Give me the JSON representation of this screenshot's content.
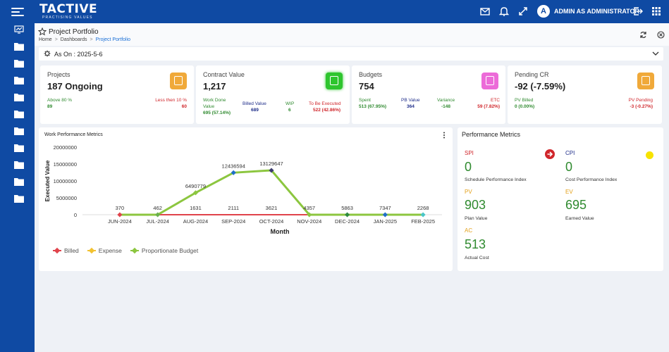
{
  "app": {
    "logo_name": "TACTIVE",
    "logo_tagline": "PRACTISING VALUES",
    "avatar_initial": "A",
    "username": "ADMIN AS ADMINISTRATOR"
  },
  "header": {
    "title": "Project Portfolio",
    "breadcrumbs": [
      "Home",
      "Dashboards",
      "Project Portfolio"
    ],
    "as_on_label": "As On : 2025-5-6"
  },
  "cards": [
    {
      "title": "Projects",
      "value": "187 Ongoing",
      "badge_color": "#f0a93a",
      "subs": [
        {
          "label": "Above 80 %",
          "value": "89",
          "color": "green"
        },
        {
          "label": "Less then 10 %",
          "value": "60",
          "color": "red"
        }
      ]
    },
    {
      "title": "Contract Value",
      "value": "1,217",
      "badge_color": "#2ec52e",
      "subs": [
        {
          "label": "Work Done Value",
          "value": "695 (57.14%)",
          "color": "green"
        },
        {
          "label": "Billed Value",
          "value": "689",
          "color": "navy"
        },
        {
          "label": "WIP",
          "value": "6",
          "color": "green"
        },
        {
          "label": "To Be Executed",
          "value": "522 (42.86%)",
          "color": "red"
        }
      ]
    },
    {
      "title": "Budgets",
      "value": "754",
      "badge_color": "#ec6bd8",
      "subs": [
        {
          "label": "Spent",
          "value": "513 (67.95%)",
          "color": "green"
        },
        {
          "label": "PB Value",
          "value": "364",
          "color": "navy"
        },
        {
          "label": "Variance",
          "value": "-148",
          "color": "green"
        },
        {
          "label": "ETC",
          "value": "59 (7.82%)",
          "color": "red"
        }
      ]
    },
    {
      "title": "Pending CR",
      "value": "-92 (-7.59%)",
      "badge_color": "#f0a93a",
      "subs": [
        {
          "label": "PV Billed",
          "value": "0 (0.00%)",
          "color": "green"
        },
        {
          "label": "PV Pending",
          "value": "-3 (-0.27%)",
          "color": "red"
        }
      ]
    }
  ],
  "chart_panel": {
    "title": "Work Performance Metrics"
  },
  "chart_data": {
    "type": "line",
    "xlabel": "Month",
    "ylabel": "Executed Value",
    "ylim": [
      0,
      20000000
    ],
    "yticks": [
      "0",
      "5000000",
      "10000000",
      "15000000",
      "20000000"
    ],
    "categories": [
      "JUN-2024",
      "JUL-2024",
      "AUG-2024",
      "SEP-2024",
      "OCT-2024",
      "NOV-2024",
      "DEC-2024",
      "JAN-2025",
      "FEB-2025"
    ],
    "series": [
      {
        "name": "Billed",
        "color": "#e0434b",
        "values": [
          0,
          0,
          0,
          0,
          0,
          0,
          0,
          0,
          0
        ]
      },
      {
        "name": "Expense",
        "color": "#f2c230",
        "values": [
          370,
          462,
          1631,
          2111,
          3621,
          4357,
          5863,
          7347,
          2268
        ]
      },
      {
        "name": "Proportionate Budget",
        "color": "#8cc63f",
        "values": [
          0,
          0,
          6490779,
          12436594,
          13129647,
          0,
          0,
          0,
          0
        ]
      }
    ],
    "point_labels": [
      "370",
      "462",
      "1631",
      "2111",
      "3621",
      "4357",
      "5863",
      "7347",
      "2268"
    ],
    "budget_labels": [
      "",
      "",
      "6490779",
      "12436594",
      "13129647",
      "",
      "",
      "",
      ""
    ]
  },
  "performance": {
    "title": "Performance Metrics",
    "metrics": [
      {
        "label": "SPI",
        "value": "0",
        "desc": "Schedule Performance Index"
      },
      {
        "label": "CPI",
        "value": "0",
        "desc": "Cost Performance Index"
      },
      {
        "label": "PV",
        "value": "903",
        "desc": "Plan Value"
      },
      {
        "label": "EV",
        "value": "695",
        "desc": "Earned Value"
      },
      {
        "label": "AC",
        "value": "513",
        "desc": "Actual Cost"
      }
    ]
  }
}
